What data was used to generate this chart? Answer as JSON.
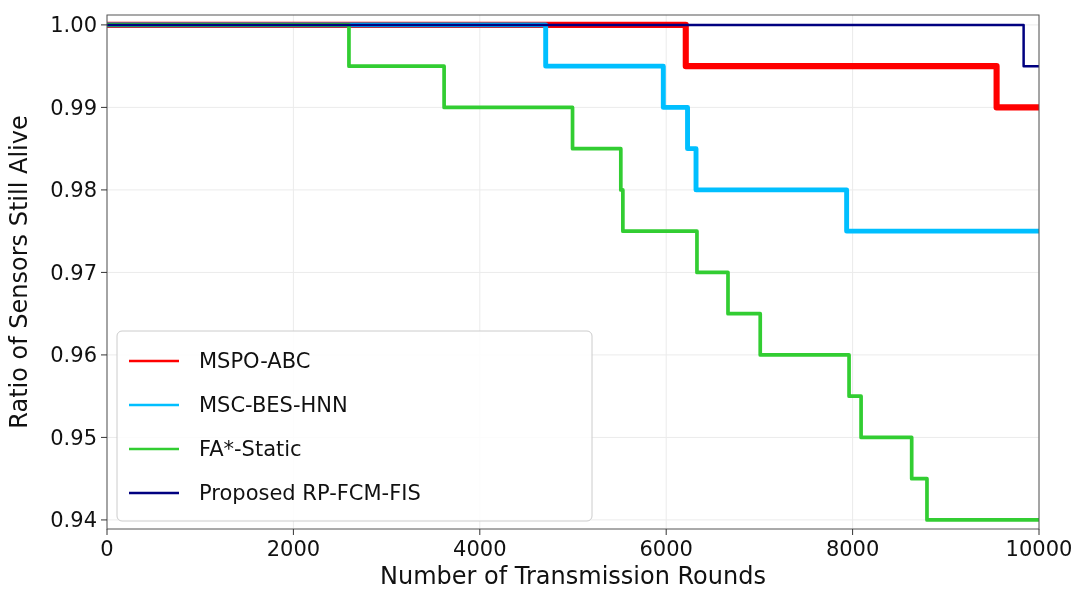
{
  "chart_data": {
    "type": "step",
    "xlabel": "Number of Transmission Rounds",
    "ylabel": "Ratio of Sensors Still Alive",
    "xlim": [
      0,
      10000
    ],
    "xticks": [
      0,
      2000,
      4000,
      6000,
      8000,
      10000
    ],
    "ylim": [
      0.9389,
      1.0012
    ],
    "yticks": [
      {
        "value": 0.94,
        "label": "0.94"
      },
      {
        "value": 0.95,
        "label": "0.95"
      },
      {
        "value": 0.96,
        "label": "0.96"
      },
      {
        "value": 0.97,
        "label": "0.97"
      },
      {
        "value": 0.98,
        "label": "0.98"
      },
      {
        "value": 0.99,
        "label": "0.99"
      },
      {
        "value": 1.0,
        "label": "1.00"
      }
    ],
    "grid": true,
    "legend": "bottom left",
    "line_style": "solid",
    "marker": "none",
    "series": [
      {
        "name": "MSPO-ABC",
        "color": "#ff0000",
        "x": [
          0,
          6210,
          9545,
          10000
        ],
        "values": [
          1.0,
          0.995,
          0.99,
          0.99
        ]
      },
      {
        "name": "MSC-BES-HNN",
        "color": "#00bfff",
        "x": [
          0,
          4707,
          5969,
          6229,
          6320,
          7936,
          10000
        ],
        "values": [
          1.0,
          0.995,
          0.99,
          0.985,
          0.98,
          0.975,
          0.975
        ]
      },
      {
        "name": "FA*-Static",
        "color": "#32cd32",
        "x": [
          0,
          2596,
          3617,
          4995,
          5513,
          5535,
          6330,
          6663,
          7009,
          7962,
          8091,
          8634,
          8798,
          10000
        ],
        "values": [
          1.0,
          0.995,
          0.99,
          0.985,
          0.98,
          0.975,
          0.97,
          0.965,
          0.96,
          0.955,
          0.95,
          0.945,
          0.94,
          0.94
        ]
      },
      {
        "name": "Proposed RP-FCM-FIS",
        "color": "#000080",
        "x": [
          0,
          9835,
          10000
        ],
        "values": [
          1.0,
          0.995,
          0.995
        ]
      }
    ]
  }
}
